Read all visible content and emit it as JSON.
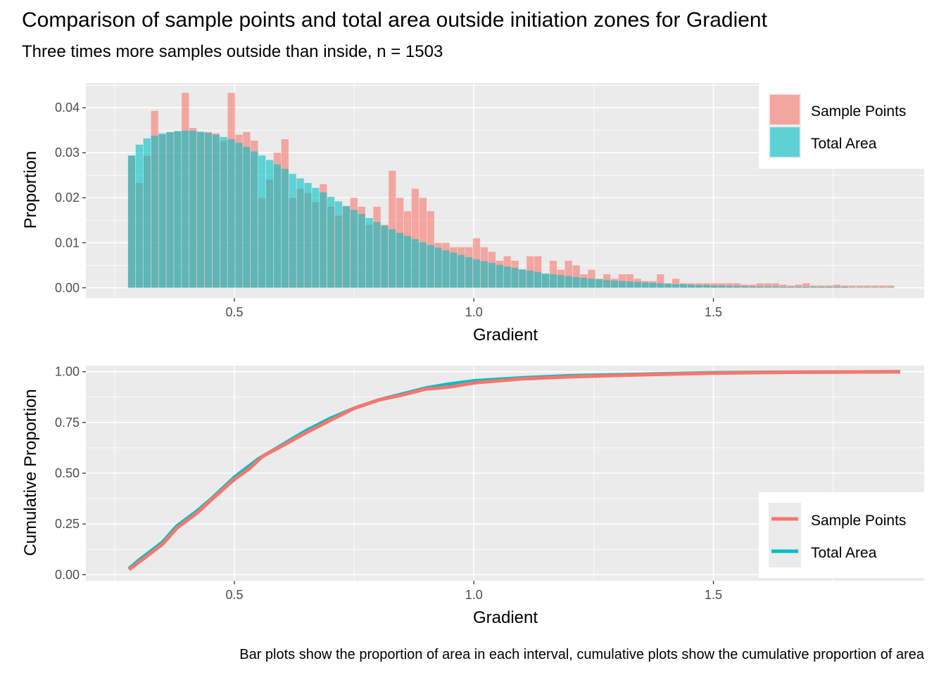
{
  "header": {
    "title": "Comparison of sample points and total area outside initiation zones for Gradient",
    "subtitle": "Three times more samples outside than inside, n = 1503"
  },
  "caption": "Bar plots show the proportion of area in each interval, cumulative plots show the cumulative proportion of area",
  "colors": {
    "sample_points": "#F8766D",
    "total_area": "#00BFC4",
    "panel_bg": "#EBEBEB"
  },
  "chart_data": [
    {
      "type": "bar",
      "xlabel": "Gradient",
      "ylabel": "Proportion",
      "xlim": [
        0.19,
        1.94
      ],
      "ylim": [
        -0.0023,
        0.0455
      ],
      "x_ticks": [
        0.5,
        1.0,
        1.5
      ],
      "x_tick_labels": [
        "0.5",
        "1.0",
        "1.5"
      ],
      "y_ticks": [
        0.0,
        0.01,
        0.02,
        0.03,
        0.04
      ],
      "y_tick_labels": [
        "0.00",
        "0.01",
        "0.02",
        "0.03",
        "0.04"
      ],
      "grid": true,
      "legend_position": "top-right",
      "bin_width": 0.016,
      "x": [
        0.286,
        0.302,
        0.318,
        0.334,
        0.35,
        0.366,
        0.382,
        0.398,
        0.414,
        0.43,
        0.446,
        0.462,
        0.478,
        0.494,
        0.51,
        0.526,
        0.542,
        0.558,
        0.574,
        0.59,
        0.606,
        0.622,
        0.638,
        0.654,
        0.67,
        0.686,
        0.702,
        0.718,
        0.734,
        0.75,
        0.766,
        0.782,
        0.798,
        0.814,
        0.83,
        0.846,
        0.862,
        0.878,
        0.894,
        0.91,
        0.926,
        0.942,
        0.958,
        0.974,
        0.99,
        1.006,
        1.022,
        1.038,
        1.054,
        1.07,
        1.086,
        1.102,
        1.118,
        1.134,
        1.15,
        1.166,
        1.182,
        1.198,
        1.214,
        1.23,
        1.246,
        1.262,
        1.278,
        1.294,
        1.31,
        1.326,
        1.342,
        1.358,
        1.374,
        1.39,
        1.406,
        1.422,
        1.438,
        1.454,
        1.47,
        1.486,
        1.502,
        1.518,
        1.534,
        1.55,
        1.566,
        1.582,
        1.598,
        1.614,
        1.63,
        1.646,
        1.662,
        1.678,
        1.694,
        1.71,
        1.726,
        1.742,
        1.758,
        1.774,
        1.79,
        1.806,
        1.822,
        1.838,
        1.854,
        1.87
      ],
      "series": [
        {
          "name": "Sample Points",
          "values": [
            0.0293,
            0.0233,
            0.0293,
            0.0393,
            0.034,
            0.0345,
            0.0348,
            0.0433,
            0.0355,
            0.0345,
            0.0346,
            0.0343,
            0.0326,
            0.0433,
            0.034,
            0.0346,
            0.0327,
            0.02,
            0.024,
            0.03,
            0.033,
            0.02,
            0.022,
            0.021,
            0.019,
            0.023,
            0.018,
            0.016,
            0.018,
            0.02,
            0.018,
            0.014,
            0.018,
            0.014,
            0.026,
            0.02,
            0.017,
            0.022,
            0.02,
            0.017,
            0.01,
            0.01,
            0.009,
            0.009,
            0.009,
            0.011,
            0.009,
            0.008,
            0.006,
            0.007,
            0.006,
            0.004,
            0.007,
            0.007,
            0.003,
            0.006,
            0.004,
            0.006,
            0.005,
            0.003,
            0.004,
            0.002,
            0.003,
            0.002,
            0.003,
            0.003,
            0.002,
            0.0015,
            0.0015,
            0.003,
            0.001,
            0.002,
            0.001,
            0.001,
            0.001,
            0.001,
            0.001,
            0.001,
            0.001,
            0.001,
            0.0007,
            0.0007,
            0.001,
            0.001,
            0.001,
            0.0007,
            0.0005,
            0.0007,
            0.001,
            0.0005,
            0.0005,
            0.0005,
            0.0007,
            0.0005,
            0.0005,
            0.0005,
            0.0005,
            0.0005,
            0.0005,
            0.0005
          ]
        },
        {
          "name": "Total Area",
          "values": [
            0.0294,
            0.0318,
            0.0332,
            0.0338,
            0.0343,
            0.0346,
            0.0348,
            0.0349,
            0.0349,
            0.0347,
            0.0344,
            0.034,
            0.0335,
            0.033,
            0.0322,
            0.0313,
            0.0303,
            0.0294,
            0.0284,
            0.0274,
            0.0264,
            0.0253,
            0.0243,
            0.0233,
            0.0222,
            0.0212,
            0.0202,
            0.0192,
            0.0182,
            0.0173,
            0.0164,
            0.0155,
            0.0146,
            0.0138,
            0.013,
            0.0122,
            0.0115,
            0.0108,
            0.0101,
            0.0095,
            0.0089,
            0.0083,
            0.0078,
            0.0073,
            0.0068,
            0.0063,
            0.0059,
            0.0055,
            0.0051,
            0.0047,
            0.0044,
            0.0041,
            0.0038,
            0.0035,
            0.0032,
            0.003,
            0.0028,
            0.0026,
            0.0024,
            0.0022,
            0.002,
            0.0019,
            0.0017,
            0.0016,
            0.0015,
            0.0014,
            0.0013,
            0.0012,
            0.0011,
            0.001,
            0.0009,
            0.0008,
            0.0008,
            0.0007,
            0.0006,
            0.0006,
            0.0005,
            0.0005,
            0.0004,
            0.0004,
            0.0004,
            0.0003,
            0.0003,
            0.0003,
            0.0003,
            0.0002,
            0.0002,
            0.0002,
            0.0002,
            0.0002,
            0.0002,
            0.0002,
            0.0002,
            0.0002,
            0.0001,
            0.0001,
            0.0001,
            0.0001,
            0.0001,
            0.0001
          ]
        }
      ],
      "legend": [
        "Sample Points",
        "Total Area"
      ]
    },
    {
      "type": "line",
      "xlabel": "Gradient",
      "ylabel": "Cumulative Proportion",
      "xlim": [
        0.19,
        1.94
      ],
      "ylim": [
        -0.03,
        1.03
      ],
      "x_ticks": [
        0.5,
        1.0,
        1.5
      ],
      "x_tick_labels": [
        "0.5",
        "1.0",
        "1.5"
      ],
      "y_ticks": [
        0.0,
        0.25,
        0.5,
        0.75,
        1.0
      ],
      "y_tick_labels": [
        "0.00",
        "0.25",
        "0.50",
        "0.75",
        "1.00"
      ],
      "grid": true,
      "legend_position": "bottom-right",
      "series": [
        {
          "name": "Total Area",
          "x": [
            0.28,
            0.3,
            0.35,
            0.38,
            0.42,
            0.45,
            0.5,
            0.55,
            0.6,
            0.65,
            0.7,
            0.75,
            0.8,
            0.85,
            0.9,
            0.95,
            1.0,
            1.1,
            1.2,
            1.3,
            1.4,
            1.5,
            1.6,
            1.7,
            1.8,
            1.89
          ],
          "values": [
            0.03,
            0.07,
            0.16,
            0.24,
            0.31,
            0.37,
            0.48,
            0.57,
            0.64,
            0.71,
            0.77,
            0.82,
            0.86,
            0.89,
            0.92,
            0.94,
            0.955,
            0.97,
            0.98,
            0.985,
            0.99,
            0.995,
            0.997,
            0.998,
            0.999,
            1.0
          ]
        },
        {
          "name": "Sample Points",
          "x": [
            0.28,
            0.3,
            0.35,
            0.38,
            0.42,
            0.45,
            0.5,
            0.53,
            0.56,
            0.6,
            0.65,
            0.7,
            0.75,
            0.8,
            0.85,
            0.9,
            0.95,
            1.0,
            1.1,
            1.2,
            1.3,
            1.4,
            1.5,
            1.6,
            1.7,
            1.8,
            1.89
          ],
          "values": [
            0.025,
            0.06,
            0.15,
            0.23,
            0.3,
            0.365,
            0.47,
            0.52,
            0.585,
            0.635,
            0.7,
            0.76,
            0.82,
            0.86,
            0.885,
            0.915,
            0.925,
            0.945,
            0.965,
            0.975,
            0.982,
            0.988,
            0.993,
            0.996,
            0.998,
            0.999,
            1.0
          ]
        }
      ],
      "legend": [
        "Sample Points",
        "Total Area"
      ]
    }
  ]
}
